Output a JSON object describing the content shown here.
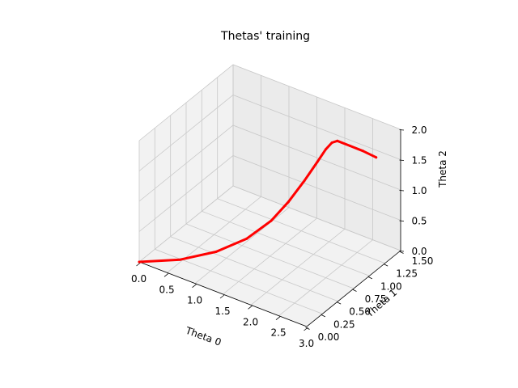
{
  "chart_data": {
    "type": "line",
    "projection": "3d",
    "title": "Thetas' training",
    "xlabel": "Theta 0",
    "ylabel": "Theta 1",
    "zlabel": "Theta 2",
    "xlim": [
      0,
      3
    ],
    "ylim": [
      0,
      1.5
    ],
    "zlim": [
      0,
      2.0
    ],
    "x_ticks": [
      "0.0",
      "0.5",
      "1.0",
      "1.5",
      "2.0",
      "2.5",
      "3.0"
    ],
    "y_ticks": [
      "0.00",
      "0.25",
      "0.50",
      "0.75",
      "1.00",
      "1.25",
      "1.50"
    ],
    "z_ticks": [
      "0.0",
      "0.5",
      "1.0",
      "1.5",
      "2.0"
    ],
    "grid": true,
    "series": [
      {
        "color": "#ff0000",
        "points": [
          {
            "x": 0.0,
            "y": 0.0,
            "z": 0.0
          },
          {
            "x": 0.6,
            "y": 0.12,
            "z": 0.15
          },
          {
            "x": 1.1,
            "y": 0.25,
            "z": 0.35
          },
          {
            "x": 1.5,
            "y": 0.38,
            "z": 0.6
          },
          {
            "x": 1.8,
            "y": 0.5,
            "z": 0.9
          },
          {
            "x": 2.0,
            "y": 0.6,
            "z": 1.2
          },
          {
            "x": 2.15,
            "y": 0.72,
            "z": 1.5
          },
          {
            "x": 2.25,
            "y": 0.84,
            "z": 1.75
          },
          {
            "x": 2.3,
            "y": 0.93,
            "z": 1.9
          },
          {
            "x": 2.33,
            "y": 1.0,
            "z": 1.96
          },
          {
            "x": 2.36,
            "y": 1.06,
            "z": 1.95
          },
          {
            "x": 2.45,
            "y": 1.18,
            "z": 1.8
          },
          {
            "x": 2.55,
            "y": 1.3,
            "z": 1.65
          },
          {
            "x": 2.65,
            "y": 1.42,
            "z": 1.48
          }
        ]
      }
    ]
  }
}
